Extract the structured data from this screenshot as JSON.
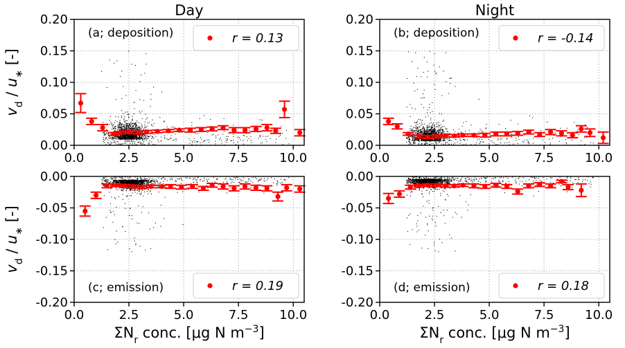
{
  "figure": {
    "columns": [
      "Day",
      "Night"
    ],
    "y_axis_title": "v_d / u_* [-]",
    "x_axis_title": "ΣN_r conc. [μg N m^-3]"
  },
  "colors": {
    "binned": "#ff0000",
    "scatter": "#000000"
  },
  "chart_data": [
    {
      "type": "scatter",
      "panel": "top-left",
      "label": "(a; deposition)",
      "column_title": "Day",
      "legend": {
        "marker": "red dot",
        "text": "r = 0.13",
        "placement": "top-right"
      },
      "xlim": [
        0,
        10.5
      ],
      "ylim": [
        0,
        0.2
      ],
      "xticks": [
        "0.0",
        "2.5",
        "5.0",
        "7.5",
        "10.0"
      ],
      "yticks": [
        "0.00",
        "0.05",
        "0.10",
        "0.15",
        "0.20"
      ],
      "grid": true,
      "cloud": {
        "x_center": 2.5,
        "x_spread": 0.7,
        "y_center": 0.015,
        "y_spread": 0.02,
        "y_tail": 0.15
      },
      "binned": [
        [
          0.3,
          0.067,
          0.015
        ],
        [
          0.8,
          0.038,
          0.005
        ],
        [
          1.3,
          0.028,
          0.005
        ],
        [
          1.8,
          0.018,
          0.002
        ],
        [
          2.1,
          0.02,
          0.002
        ],
        [
          2.5,
          0.021,
          0.002
        ],
        [
          2.9,
          0.02,
          0.002
        ],
        [
          3.3,
          0.021,
          0.002
        ],
        [
          3.8,
          0.022,
          0.002
        ],
        [
          4.3,
          0.023,
          0.002
        ],
        [
          4.8,
          0.024,
          0.002
        ],
        [
          5.3,
          0.024,
          0.003
        ],
        [
          5.8,
          0.025,
          0.003
        ],
        [
          6.3,
          0.026,
          0.003
        ],
        [
          6.8,
          0.028,
          0.003
        ],
        [
          7.3,
          0.024,
          0.004
        ],
        [
          7.8,
          0.024,
          0.004
        ],
        [
          8.3,
          0.026,
          0.004
        ],
        [
          8.8,
          0.028,
          0.005
        ],
        [
          9.2,
          0.023,
          0.004
        ],
        [
          9.6,
          0.057,
          0.013
        ],
        [
          10.3,
          0.02,
          0.005
        ]
      ]
    },
    {
      "type": "scatter",
      "panel": "top-right",
      "label": "(b; deposition)",
      "column_title": "Night",
      "legend": {
        "marker": "red dot",
        "text": "r = -0.14",
        "placement": "top-right"
      },
      "xlim": [
        0,
        10.5
      ],
      "ylim": [
        0,
        0.2
      ],
      "xticks": [
        "0.0",
        "2.5",
        "5.0",
        "7.5",
        "10.0"
      ],
      "yticks": [
        "0.00",
        "0.05",
        "0.10",
        "0.15",
        "0.20"
      ],
      "grid": true,
      "cloud": {
        "x_center": 2.2,
        "x_spread": 0.7,
        "y_center": 0.012,
        "y_spread": 0.018,
        "y_tail": 0.15
      },
      "binned": [
        [
          0.4,
          0.038,
          0.005
        ],
        [
          0.8,
          0.03,
          0.004
        ],
        [
          1.3,
          0.018,
          0.002
        ],
        [
          1.8,
          0.014,
          0.002
        ],
        [
          2.2,
          0.013,
          0.002
        ],
        [
          2.6,
          0.014,
          0.002
        ],
        [
          3.0,
          0.015,
          0.002
        ],
        [
          3.4,
          0.015,
          0.002
        ],
        [
          3.8,
          0.016,
          0.002
        ],
        [
          4.3,
          0.016,
          0.002
        ],
        [
          4.8,
          0.016,
          0.003
        ],
        [
          5.3,
          0.018,
          0.003
        ],
        [
          5.8,
          0.018,
          0.003
        ],
        [
          6.3,
          0.019,
          0.003
        ],
        [
          6.8,
          0.021,
          0.003
        ],
        [
          7.3,
          0.017,
          0.003
        ],
        [
          7.8,
          0.021,
          0.004
        ],
        [
          8.3,
          0.019,
          0.004
        ],
        [
          8.8,
          0.016,
          0.004
        ],
        [
          9.2,
          0.026,
          0.005
        ],
        [
          9.6,
          0.02,
          0.006
        ],
        [
          10.2,
          0.012,
          0.009
        ]
      ]
    },
    {
      "type": "scatter",
      "panel": "bottom-left",
      "label": "(c; emission)",
      "legend": {
        "marker": "red dot",
        "text": "r = 0.19",
        "placement": "bottom-right"
      },
      "xlim": [
        0,
        10.5
      ],
      "ylim": [
        -0.2,
        0
      ],
      "xticks": [
        "0.0",
        "2.5",
        "5.0",
        "7.5",
        "10.0"
      ],
      "yticks": [
        "0.00",
        "-0.05",
        "-0.10",
        "-0.15",
        "-0.20"
      ],
      "grid": true,
      "cloud": {
        "x_center": 2.6,
        "x_spread": 0.8,
        "y_center": -0.008,
        "y_spread": 0.012,
        "y_tail": 0.12
      },
      "binned": [
        [
          0.5,
          -0.055,
          0.008
        ],
        [
          1.0,
          -0.03,
          0.005
        ],
        [
          1.5,
          -0.015,
          0.003
        ],
        [
          1.9,
          -0.014,
          0.002
        ],
        [
          2.3,
          -0.015,
          0.002
        ],
        [
          2.7,
          -0.016,
          0.002
        ],
        [
          3.1,
          -0.017,
          0.002
        ],
        [
          3.5,
          -0.016,
          0.002
        ],
        [
          4.0,
          -0.016,
          0.002
        ],
        [
          4.4,
          -0.016,
          0.003
        ],
        [
          4.9,
          -0.017,
          0.003
        ],
        [
          5.4,
          -0.016,
          0.003
        ],
        [
          5.9,
          -0.019,
          0.003
        ],
        [
          6.3,
          -0.014,
          0.003
        ],
        [
          6.8,
          -0.016,
          0.004
        ],
        [
          7.3,
          -0.019,
          0.004
        ],
        [
          7.8,
          -0.016,
          0.004
        ],
        [
          8.3,
          -0.018,
          0.004
        ],
        [
          8.8,
          -0.019,
          0.004
        ],
        [
          9.3,
          -0.032,
          0.007
        ],
        [
          9.7,
          -0.018,
          0.005
        ],
        [
          10.3,
          -0.02,
          0.005
        ]
      ]
    },
    {
      "type": "scatter",
      "panel": "bottom-right",
      "label": "(d; emission)",
      "legend": {
        "marker": "red dot",
        "text": "r = 0.18",
        "placement": "bottom-right"
      },
      "xlim": [
        0,
        10.5
      ],
      "ylim": [
        -0.2,
        0
      ],
      "xticks": [
        "0.0",
        "2.5",
        "5.0",
        "7.5",
        "10.0"
      ],
      "yticks": [
        "0.00",
        "-0.05",
        "-0.10",
        "-0.15",
        "-0.20"
      ],
      "grid": true,
      "cloud": {
        "x_center": 2.2,
        "x_spread": 0.8,
        "y_center": -0.006,
        "y_spread": 0.01,
        "y_tail": 0.12
      },
      "binned": [
        [
          0.4,
          -0.035,
          0.008
        ],
        [
          0.9,
          -0.028,
          0.005
        ],
        [
          1.4,
          -0.017,
          0.003
        ],
        [
          1.8,
          -0.015,
          0.002
        ],
        [
          2.2,
          -0.014,
          0.002
        ],
        [
          2.6,
          -0.014,
          0.002
        ],
        [
          3.0,
          -0.015,
          0.002
        ],
        [
          3.4,
          -0.015,
          0.002
        ],
        [
          3.8,
          -0.014,
          0.002
        ],
        [
          4.3,
          -0.015,
          0.003
        ],
        [
          4.8,
          -0.016,
          0.003
        ],
        [
          5.3,
          -0.014,
          0.003
        ],
        [
          5.8,
          -0.016,
          0.003
        ],
        [
          6.3,
          -0.024,
          0.004
        ],
        [
          6.8,
          -0.015,
          0.003
        ],
        [
          7.3,
          -0.013,
          0.003
        ],
        [
          7.8,
          -0.015,
          0.003
        ],
        [
          8.3,
          -0.008,
          0.002
        ],
        [
          8.6,
          -0.017,
          0.004
        ],
        [
          9.2,
          -0.022,
          0.01
        ]
      ]
    }
  ]
}
